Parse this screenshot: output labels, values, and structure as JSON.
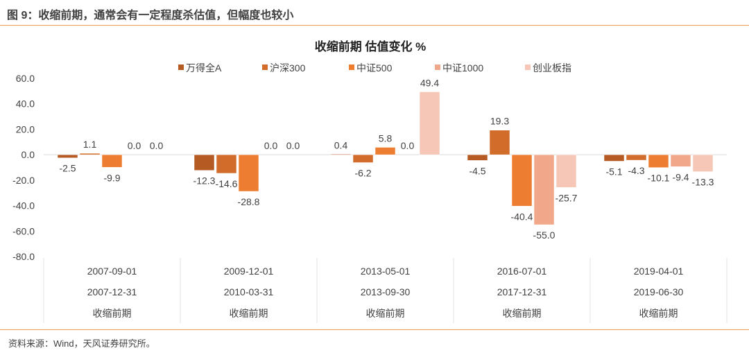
{
  "figure_title": "图 9：收缩前期，通常会有一定程度杀估值，但幅度也较小",
  "source_note": "资料来源：Wind，天风证券研究所。",
  "colors": {
    "rule": "#EE9B4F",
    "series": [
      "#B55A22",
      "#D26C2A",
      "#ED7D31",
      "#F1A88A",
      "#F6C7B7"
    ]
  },
  "chart_data": {
    "type": "bar",
    "title": "收缩前期 估值变化 %",
    "xlabel": "",
    "ylabel": "",
    "ylim": [
      -80,
      60
    ],
    "yticks": [
      60,
      40,
      20,
      0,
      -20,
      -40,
      -60,
      -80
    ],
    "ytick_labels": [
      "60.0",
      "40.0",
      "20.0",
      "0.0",
      "-20.0",
      "-40.0",
      "-60.0",
      "-80.0"
    ],
    "legend_position": "top",
    "grid": false,
    "categories": [
      {
        "start": "2007-09-01",
        "end": "2007-12-31",
        "phase": "收缩前期"
      },
      {
        "start": "2009-12-01",
        "end": "2010-03-31",
        "phase": "收缩前期"
      },
      {
        "start": "2013-05-01",
        "end": "2013-09-30",
        "phase": "收缩前期"
      },
      {
        "start": "2016-07-01",
        "end": "2017-12-31",
        "phase": "收缩前期"
      },
      {
        "start": "2019-04-01",
        "end": "2019-06-30",
        "phase": "收缩前期"
      }
    ],
    "series": [
      {
        "name": "万得全A",
        "values": [
          -2.5,
          -12.3,
          0.4,
          -4.5,
          -5.1
        ]
      },
      {
        "name": "沪深300",
        "values": [
          1.1,
          -14.6,
          -6.2,
          19.3,
          -4.3
        ]
      },
      {
        "name": "中证500",
        "values": [
          -9.9,
          -28.8,
          5.8,
          -40.4,
          -10.1
        ]
      },
      {
        "name": "中证1000",
        "values": [
          0.0,
          0.0,
          0.0,
          -55.0,
          -9.4
        ]
      },
      {
        "name": "创业板指",
        "values": [
          0.0,
          0.0,
          49.4,
          -25.7,
          -13.3
        ]
      }
    ]
  }
}
